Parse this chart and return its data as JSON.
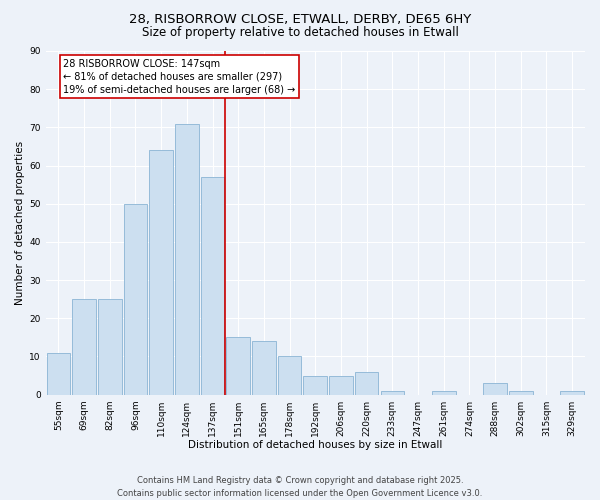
{
  "title1": "28, RISBORROW CLOSE, ETWALL, DERBY, DE65 6HY",
  "title2": "Size of property relative to detached houses in Etwall",
  "xlabel": "Distribution of detached houses by size in Etwall",
  "ylabel": "Number of detached properties",
  "categories": [
    "55sqm",
    "69sqm",
    "82sqm",
    "96sqm",
    "110sqm",
    "124sqm",
    "137sqm",
    "151sqm",
    "165sqm",
    "178sqm",
    "192sqm",
    "206sqm",
    "220sqm",
    "233sqm",
    "247sqm",
    "261sqm",
    "274sqm",
    "288sqm",
    "302sqm",
    "315sqm",
    "329sqm"
  ],
  "values": [
    11,
    25,
    25,
    50,
    64,
    71,
    57,
    15,
    14,
    10,
    5,
    5,
    6,
    1,
    0,
    1,
    0,
    3,
    1,
    0,
    1
  ],
  "bar_color": "#ccdff0",
  "bar_edge_color": "#8ab4d4",
  "vline_pos": 6.5,
  "annotation_line1": "28 RISBORROW CLOSE: 147sqm",
  "annotation_line2": "← 81% of detached houses are smaller (297)",
  "annotation_line3": "19% of semi-detached houses are larger (68) →",
  "annotation_box_facecolor": "#ffffff",
  "annotation_box_edgecolor": "#cc0000",
  "vline_color": "#cc0000",
  "ylim": [
    0,
    90
  ],
  "yticks": [
    0,
    10,
    20,
    30,
    40,
    50,
    60,
    70,
    80,
    90
  ],
  "background_color": "#edf2f9",
  "grid_color": "#ffffff",
  "footer": "Contains HM Land Registry data © Crown copyright and database right 2025.\nContains public sector information licensed under the Open Government Licence v3.0.",
  "title_fontsize": 9.5,
  "subtitle_fontsize": 8.5,
  "axis_label_fontsize": 7.5,
  "tick_fontsize": 6.5,
  "annotation_fontsize": 7,
  "footer_fontsize": 6
}
